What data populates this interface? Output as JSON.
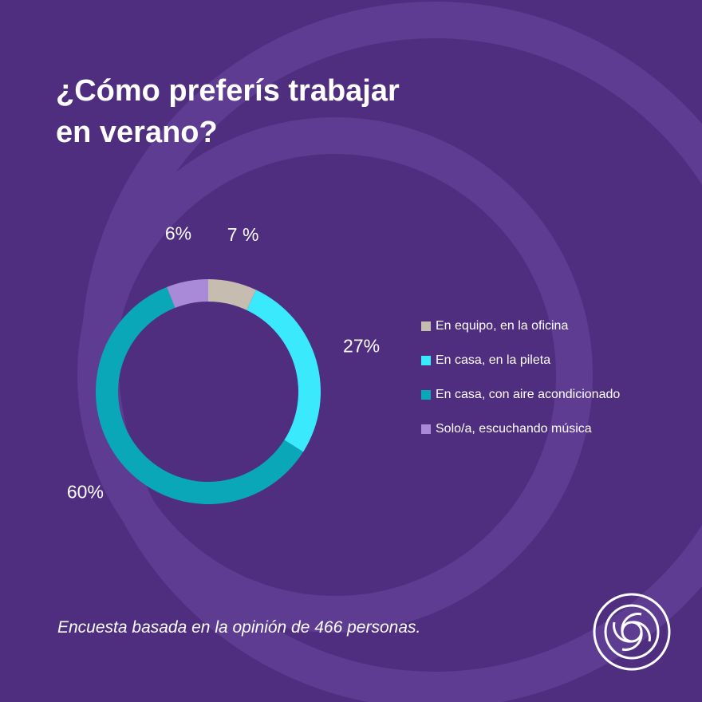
{
  "title": {
    "line1": "¿Cómo preferís trabajar",
    "line2": "en verano?"
  },
  "colors": {
    "background": "#4f2d7f",
    "background_ring": "#5e3c92",
    "text": "#ffffff"
  },
  "chart_data": {
    "type": "pie",
    "style": "donut",
    "title": "¿Cómo preferís trabajar en verano?",
    "categories": [
      "En equipo, en la oficina",
      "En casa, en la pileta",
      "En casa, con aire acondicionado",
      "Solo/a, escuchando música"
    ],
    "values": [
      7,
      27,
      60,
      6
    ],
    "data_labels": [
      "7 %",
      "27%",
      "60%",
      "6%"
    ],
    "colors": [
      "#c6bcaf",
      "#3be9fd",
      "#0aa7b8",
      "#a98ad8"
    ],
    "legend_position": "right"
  },
  "footnote": "Encuesta basada en la opinión de 466 personas.",
  "logo": {
    "icon": "aperture-logo-icon"
  }
}
